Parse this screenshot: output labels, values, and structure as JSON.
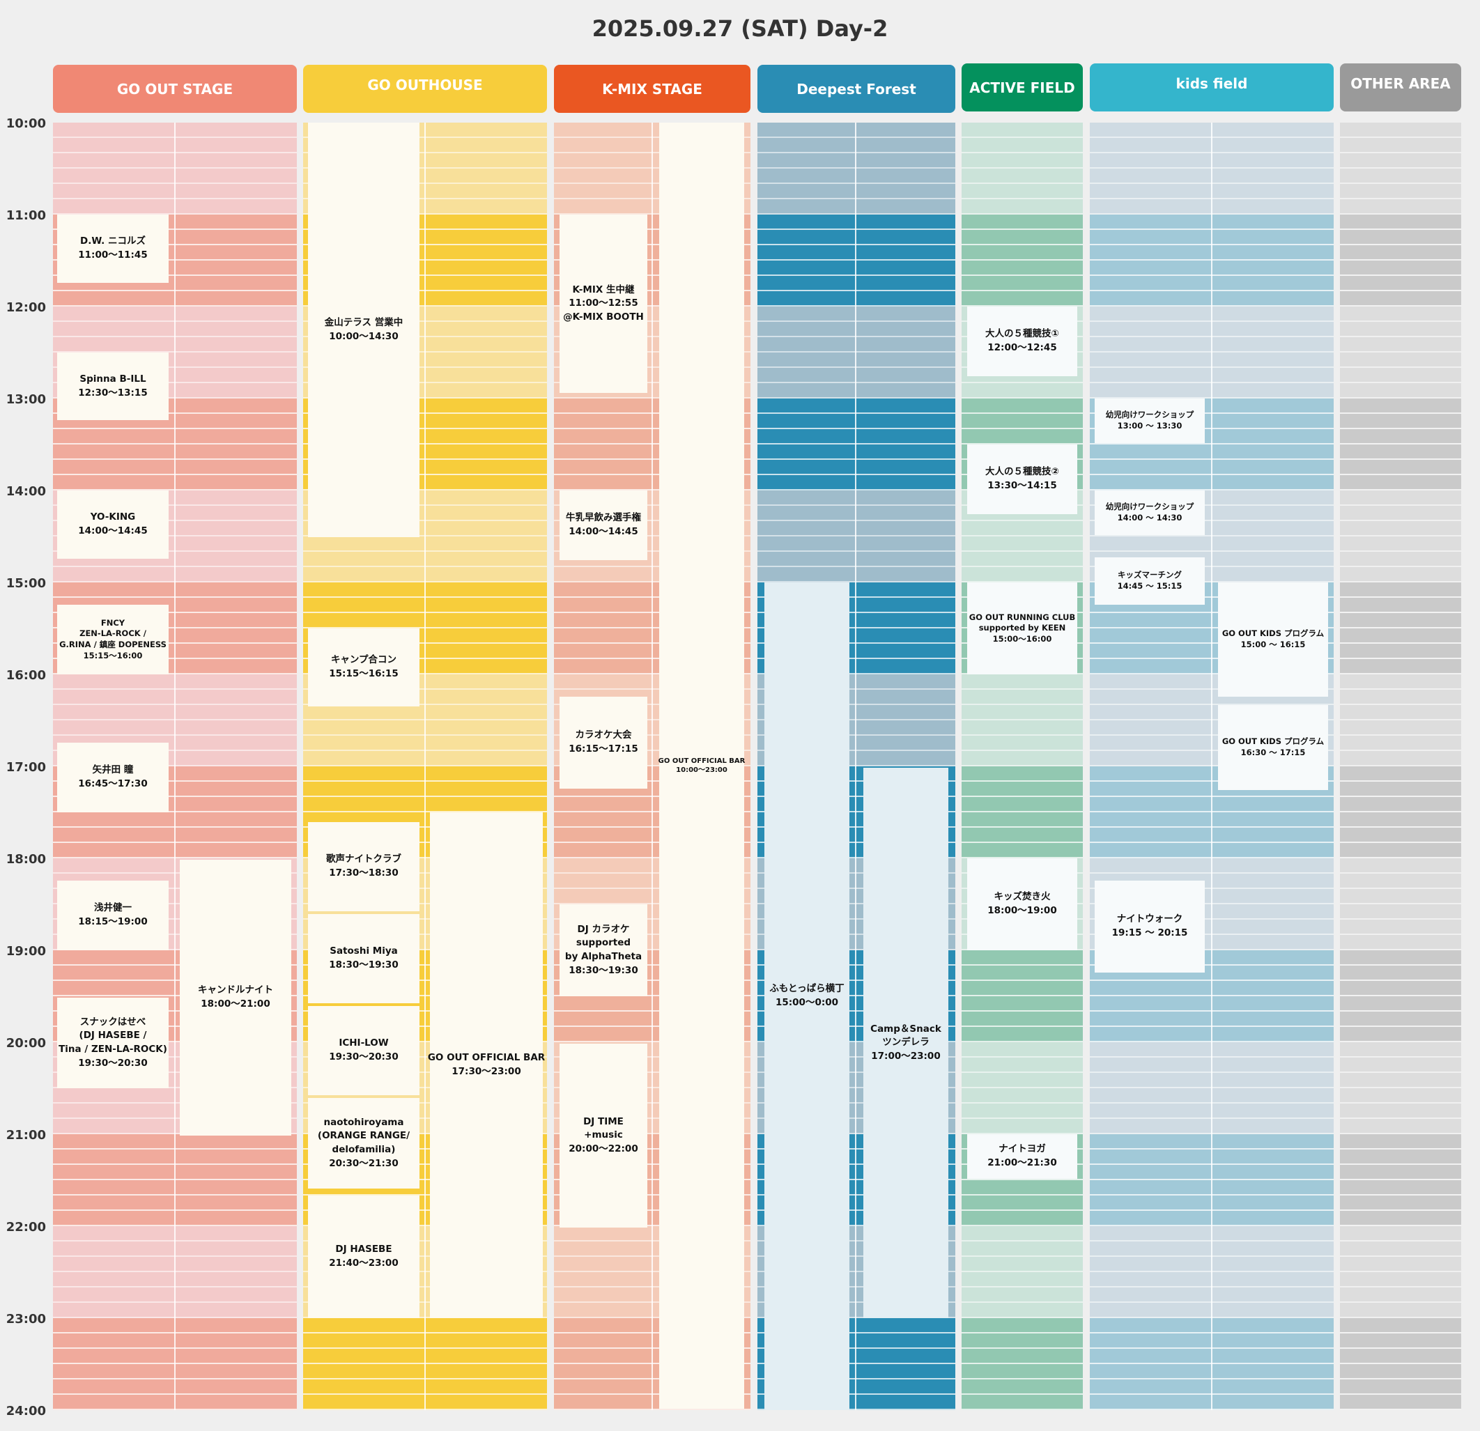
{
  "title": "2025.09.27 (SAT) Day-2",
  "time_labels": [
    "10:00",
    "11:00",
    "12:00",
    "13:00",
    "14:00",
    "15:00",
    "16:00",
    "17:00",
    "18:00",
    "19:00",
    "20:00",
    "21:00",
    "22:00",
    "23:00",
    "24:00"
  ],
  "stages": [
    {
      "id": "go-out-stage",
      "name": "GO OUT STAGE",
      "color": "#f08874",
      "light": "#f3caca",
      "dark": "#f0aa9c"
    },
    {
      "id": "go-outhouse",
      "name": "GO OUTHOUSE",
      "color": "#f7cd3b",
      "light": "#f8e09a",
      "dark": "#f7cd3b"
    },
    {
      "id": "k-mix-stage",
      "name": "K-MIX STAGE",
      "color": "#ea5722",
      "light": "#f4cbb8",
      "dark": "#efb09b"
    },
    {
      "id": "deepest-forest",
      "name": "Deepest Forest",
      "color": "#2a8db4",
      "light": "#9fbccb",
      "dark": "#2a8db4"
    },
    {
      "id": "active-field",
      "name": "ACTIVE FIELD",
      "color": "#04915d",
      "light": "#cbe3d9",
      "dark": "#92c8b1"
    },
    {
      "id": "kids-field",
      "name": "kids field",
      "color": "#34b5cc",
      "light": "#cfdbe3",
      "dark": "#a1c9d8"
    },
    {
      "id": "other-area",
      "name": "OTHER AREA",
      "color": "#9a9a9a",
      "light": "#dddddd",
      "dark": "#cacaca"
    }
  ],
  "events": {
    "go_out_stage": [
      {
        "lines": [
          "D.W. ニコルズ",
          "11:00〜11:45"
        ]
      },
      {
        "lines": [
          "Spinna B-ILL",
          "12:30〜13:15"
        ]
      },
      {
        "lines": [
          "YO-KING",
          "14:00〜14:45"
        ]
      },
      {
        "lines": [
          "FNCY",
          "ZEN-LA-ROCK /",
          "G.RINA / 鎮座 DOPENESS",
          "15:15〜16:00"
        ]
      },
      {
        "lines": [
          "矢井田 瞳",
          "16:45〜17:30"
        ]
      },
      {
        "lines": [
          "浅井健一",
          "18:15〜19:00"
        ]
      },
      {
        "lines": [
          "スナックはせべ",
          "(DJ HASEBE /",
          "Tina / ZEN-LA-ROCK)",
          "19:30〜20:30"
        ]
      },
      {
        "lines": [
          "キャンドルナイト",
          "18:00〜21:00"
        ]
      }
    ],
    "go_outhouse": [
      {
        "lines": [
          "金山テラス 営業中",
          "10:00〜14:30"
        ]
      },
      {
        "lines": [
          "キャンプ合コン",
          "15:15〜16:15"
        ]
      },
      {
        "lines": [
          "歌声ナイトクラブ",
          "17:30〜18:30"
        ]
      },
      {
        "lines": [
          "Satoshi Miya",
          "18:30〜19:30"
        ]
      },
      {
        "lines": [
          "ICHI-LOW",
          "19:30〜20:30"
        ]
      },
      {
        "lines": [
          "naotohiroyama",
          "(ORANGE RANGE/",
          "delofamilia)",
          "20:30〜21:30"
        ]
      },
      {
        "lines": [
          "DJ HASEBE",
          "21:40〜23:00"
        ]
      },
      {
        "lines": [
          "GO OUT OFFICIAL BAR",
          "17:30〜23:00"
        ]
      }
    ],
    "k_mix_stage": [
      {
        "lines": [
          "K-MIX 生中継",
          "11:00〜12:55",
          "@K-MIX BOOTH"
        ]
      },
      {
        "lines": [
          "牛乳早飲み選手権",
          "14:00〜14:45"
        ]
      },
      {
        "lines": [
          "カラオケ大会",
          "16:15〜17:15"
        ]
      },
      {
        "lines": [
          "DJ カラオケ",
          "supported",
          "by AlphaTheta",
          "18:30〜19:30"
        ]
      },
      {
        "lines": [
          "DJ TIME",
          "+music",
          "20:00〜22:00"
        ]
      },
      {
        "lines": [
          "GO OUT OFFICIAL BAR",
          "10:00〜23:00"
        ]
      }
    ],
    "deepest_forest": [
      {
        "lines": [
          "ふもとっぱら横丁",
          "15:00〜0:00"
        ]
      },
      {
        "lines": [
          "Camp＆Snack",
          "ツンデレラ",
          "17:00〜23:00"
        ]
      }
    ],
    "active_field": [
      {
        "lines": [
          "大人の５種競技①",
          "12:00〜12:45"
        ]
      },
      {
        "lines": [
          "大人の５種競技②",
          "13:30〜14:15"
        ]
      },
      {
        "lines": [
          "GO OUT RUNNING CLUB",
          "supported by KEEN",
          "15:00〜16:00"
        ]
      },
      {
        "lines": [
          "キッズ焚き火",
          "18:00〜19:00"
        ]
      },
      {
        "lines": [
          "ナイトヨガ",
          "21:00〜21:30"
        ]
      }
    ],
    "kids_field": [
      {
        "lines": [
          "幼児向けワークショップ",
          "13:00 〜 13:30"
        ]
      },
      {
        "lines": [
          "幼児向けワークショップ",
          "14:00 〜 14:30"
        ]
      },
      {
        "lines": [
          "キッズマーチング",
          "14:45 〜 15:15"
        ]
      },
      {
        "lines": [
          "GO OUT KIDS プログラム",
          "15:00 〜 16:15"
        ]
      },
      {
        "lines": [
          "GO OUT KIDS プログラム",
          "16:30 〜 17:15"
        ]
      },
      {
        "lines": [
          "ナイトウォーク",
          "19:15 〜 20:15"
        ]
      }
    ]
  }
}
